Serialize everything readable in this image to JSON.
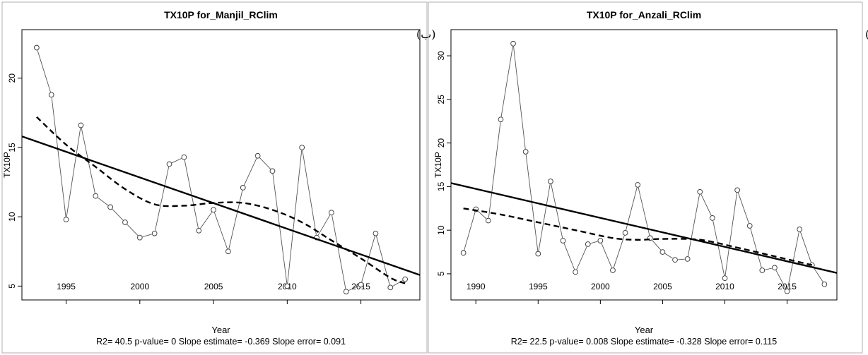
{
  "chart_data": [
    {
      "type": "line",
      "title": "TX10P   for_Manjil_RClim",
      "panel_label": "(ب)",
      "xlabel": "Year",
      "ylabel": "TX10P",
      "xlim": [
        1992,
        2019
      ],
      "ylim": [
        4,
        23.5
      ],
      "x_ticks": [
        1995,
        2000,
        2005,
        2010,
        2015
      ],
      "y_ticks": [
        5,
        10,
        15,
        20
      ],
      "series": [
        {
          "style": "points-connected",
          "x": [
            1993,
            1994,
            1995,
            1996,
            1997,
            1998,
            1999,
            2000,
            2001,
            2002,
            2003,
            2004,
            2005,
            2006,
            2007,
            2008,
            2009,
            2010,
            2011,
            2012,
            2013,
            2014,
            2015,
            2016,
            2017,
            2018
          ],
          "y": [
            22.2,
            18.8,
            9.8,
            16.6,
            11.5,
            10.7,
            9.6,
            8.5,
            8.8,
            13.8,
            14.3,
            9.0,
            10.5,
            7.5,
            12.1,
            14.4,
            13.3,
            5.0,
            15.0,
            8.5,
            10.3,
            4.6,
            5.1,
            8.8,
            4.9,
            5.5
          ]
        },
        {
          "style": "dashed-smooth",
          "x": [
            1993,
            1995,
            1997,
            1999,
            2001,
            2003,
            2005,
            2007,
            2009,
            2011,
            2013,
            2015,
            2017,
            2018
          ],
          "y": [
            17.2,
            15.2,
            13.6,
            12.0,
            10.9,
            10.8,
            11.0,
            11.0,
            10.5,
            9.6,
            8.3,
            7.0,
            5.6,
            5.2
          ]
        },
        {
          "style": "trend-line",
          "x": [
            1992,
            2019
          ],
          "y": [
            15.8,
            5.8
          ]
        }
      ],
      "footer": "R2= 40.5  p-value= 0  Slope estimate= -0.369  Slope error= 0.091"
    },
    {
      "type": "line",
      "title": "TX10P   for_Anzali_RClim",
      "panel_label": "(الف)",
      "xlabel": "Year",
      "ylabel": "TX10P",
      "xlim": [
        1988,
        2019
      ],
      "ylim": [
        2,
        33
      ],
      "x_ticks": [
        1990,
        1995,
        2000,
        2005,
        2010,
        2015
      ],
      "y_ticks": [
        5,
        10,
        15,
        20,
        25,
        30
      ],
      "series": [
        {
          "style": "points-connected",
          "x": [
            1989,
            1990,
            1991,
            1992,
            1993,
            1994,
            1995,
            1996,
            1997,
            1998,
            1999,
            2000,
            2001,
            2002,
            2003,
            2004,
            2005,
            2006,
            2007,
            2008,
            2009,
            2010,
            2011,
            2012,
            2013,
            2014,
            2015,
            2016,
            2017,
            2018
          ],
          "y": [
            7.4,
            12.4,
            11.1,
            22.7,
            31.4,
            19.0,
            7.3,
            15.6,
            8.8,
            5.2,
            8.4,
            8.8,
            5.4,
            9.7,
            15.2,
            9.1,
            7.5,
            6.6,
            6.7,
            14.4,
            11.4,
            4.5,
            14.6,
            10.5,
            5.4,
            5.7,
            3.0,
            10.1,
            6.0,
            3.8
          ]
        },
        {
          "style": "dashed-smooth",
          "x": [
            1989,
            1992,
            1995,
            1998,
            2001,
            2003,
            2005,
            2008,
            2011,
            2014,
            2017
          ],
          "y": [
            12.5,
            11.8,
            10.9,
            10.0,
            9.1,
            8.9,
            9.0,
            8.9,
            8.0,
            7.0,
            6.0
          ]
        },
        {
          "style": "trend-line",
          "x": [
            1988,
            2019
          ],
          "y": [
            15.4,
            5.1
          ]
        }
      ],
      "footer": "R2= 22.5  p-value= 0.008  Slope estimate= -0.328  Slope error= 0.115"
    }
  ]
}
